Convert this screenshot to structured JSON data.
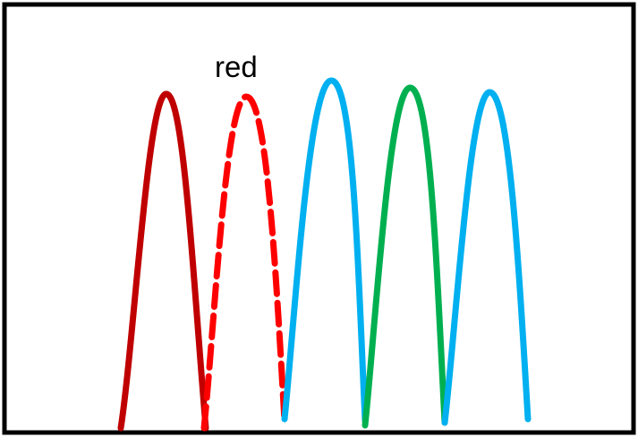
{
  "figure": {
    "label": "red",
    "curves": [
      {
        "name": "dark-red-curve",
        "color": "#c00000",
        "style": "solid"
      },
      {
        "name": "red-dashed-curve",
        "color": "#ff0000",
        "style": "dashed"
      },
      {
        "name": "light-blue-curve",
        "color": "#00b0f0",
        "style": "solid"
      },
      {
        "name": "green-curve",
        "color": "#00b050",
        "style": "solid"
      },
      {
        "name": "light-blue-curve-2",
        "color": "#00b0f0",
        "style": "solid"
      }
    ]
  }
}
